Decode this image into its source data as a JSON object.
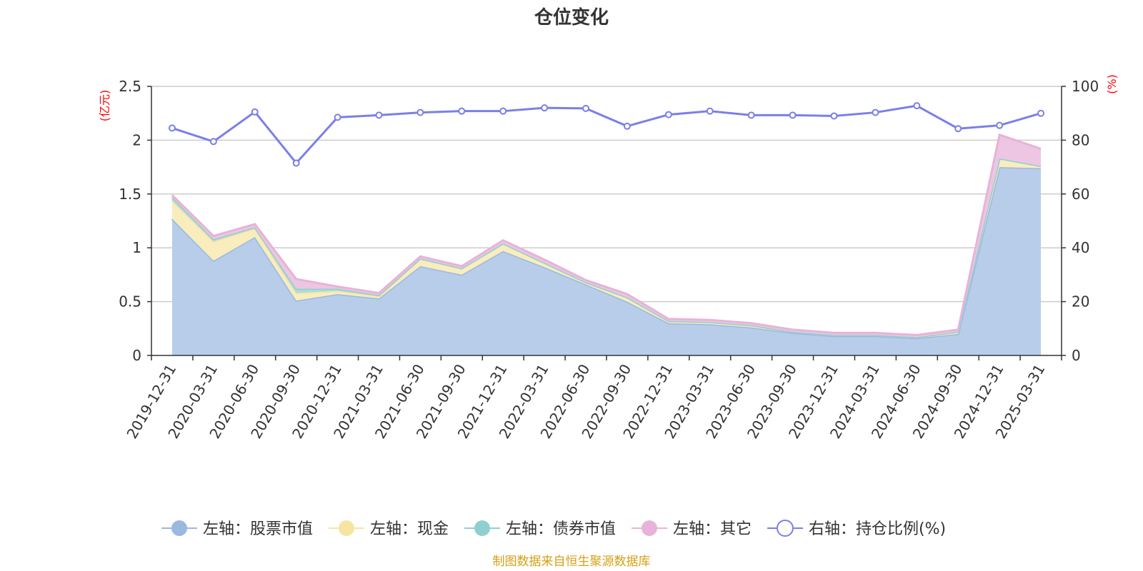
{
  "chart_data": {
    "type": "area",
    "title": "仓位变化",
    "source": "制图数据来自恒生聚源数据库",
    "left_axis": {
      "unit": "(亿元)",
      "ylim": [
        0,
        2.5
      ],
      "ticks": [
        "0",
        "0.5",
        "1",
        "1.5",
        "2",
        "2.5"
      ]
    },
    "right_axis": {
      "unit": "(%)",
      "ylim": [
        0,
        100
      ],
      "ticks": [
        "0",
        "20",
        "40",
        "60",
        "80",
        "100"
      ]
    },
    "categories": [
      "2019-12-31",
      "2020-03-31",
      "2020-06-30",
      "2020-09-30",
      "2020-12-31",
      "2021-03-31",
      "2021-06-30",
      "2021-09-30",
      "2021-12-31",
      "2022-03-31",
      "2022-06-30",
      "2022-09-30",
      "2022-12-31",
      "2023-03-31",
      "2023-06-30",
      "2023-09-30",
      "2023-12-31",
      "2024-03-31",
      "2024-06-30",
      "2024-09-30",
      "2024-12-31",
      "2025-03-31"
    ],
    "series": [
      {
        "name": "左轴：股票市值",
        "axis": "left",
        "type": "area",
        "color": "#9ab8e0",
        "fill": "#b8cdea",
        "values": [
          1.27,
          0.88,
          1.1,
          0.51,
          0.57,
          0.53,
          0.83,
          0.75,
          0.97,
          0.82,
          0.66,
          0.5,
          0.3,
          0.29,
          0.26,
          0.21,
          0.18,
          0.18,
          0.16,
          0.2,
          1.75,
          1.74
        ]
      },
      {
        "name": "左轴：现金",
        "axis": "left",
        "type": "area",
        "color": "#f6e4a0",
        "fill": "#f9ecbd",
        "values": [
          0.17,
          0.18,
          0.08,
          0.07,
          0.03,
          0.02,
          0.07,
          0.06,
          0.07,
          0.04,
          0.02,
          0.04,
          0.02,
          0.02,
          0.02,
          0.01,
          0.01,
          0.01,
          0.01,
          0.02,
          0.08,
          0.02
        ]
      },
      {
        "name": "左轴：债券市值",
        "axis": "left",
        "type": "area",
        "color": "#8fd0cf",
        "fill": "#aadcdb",
        "values": [
          0.03,
          0.02,
          0.01,
          0.04,
          0.02,
          0.01,
          0.0,
          0.0,
          0.0,
          0.0,
          0.0,
          0.0,
          0.0,
          0.0,
          0.0,
          0.0,
          0.0,
          0.0,
          0.0,
          0.0,
          0.0,
          0.0
        ]
      },
      {
        "name": "左轴：其它",
        "axis": "left",
        "type": "area",
        "color": "#e7b3d8",
        "fill": "#ecc6e2",
        "values": [
          0.02,
          0.03,
          0.03,
          0.09,
          0.02,
          0.02,
          0.02,
          0.02,
          0.03,
          0.03,
          0.02,
          0.03,
          0.02,
          0.02,
          0.02,
          0.02,
          0.02,
          0.02,
          0.02,
          0.02,
          0.22,
          0.16
        ]
      },
      {
        "name": "右轴：持仓比例(%)",
        "axis": "right",
        "type": "line",
        "color": "#7b7fe8",
        "values": [
          84.5,
          79.5,
          90.5,
          71.5,
          88.5,
          89.3,
          90.3,
          90.8,
          90.8,
          92.0,
          91.8,
          85.2,
          89.5,
          90.8,
          89.3,
          89.3,
          89.0,
          90.3,
          92.8,
          84.3,
          85.5,
          90.0
        ]
      }
    ]
  }
}
